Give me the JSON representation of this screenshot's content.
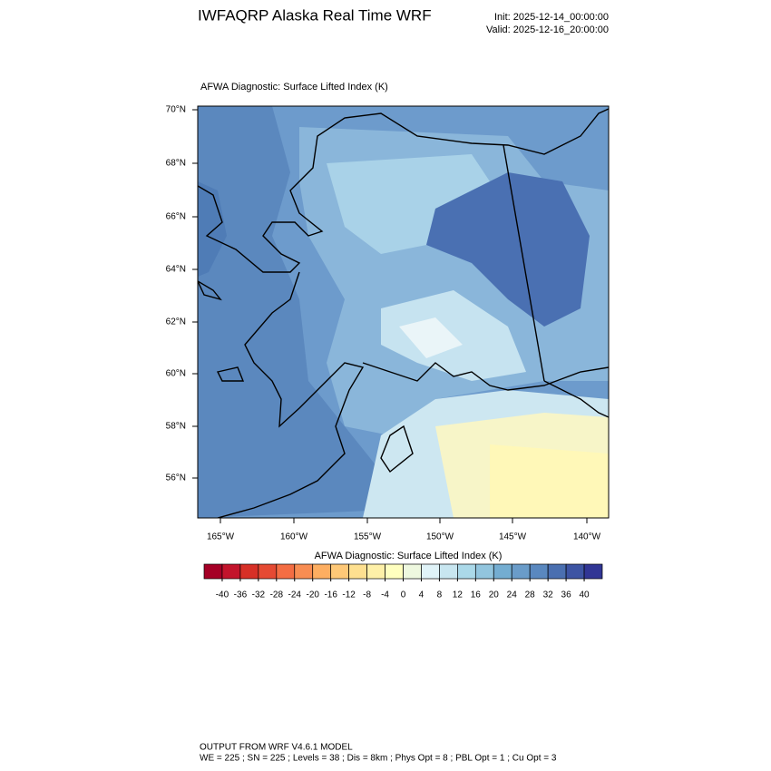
{
  "header": {
    "title": "IWFAQRP Alaska Real Time WRF",
    "init": "Init: 2025-12-14_00:00:00",
    "valid": "Valid: 2025-12-16_20:00:00"
  },
  "map": {
    "title": "AFWA Diagnostic: Surface Lifted Index   (K)",
    "lat_labels": [
      "70°N",
      "68°N",
      "66°N",
      "64°N",
      "62°N",
      "60°N",
      "58°N",
      "56°N"
    ],
    "lon_labels": [
      "165°W",
      "160°W",
      "155°W",
      "150°W",
      "145°W",
      "140°W"
    ]
  },
  "colorbar": {
    "title": "AFWA Diagnostic: Surface Lifted Index  (K)",
    "colors": [
      "#a50026",
      "#c3142c",
      "#d73027",
      "#e54a33",
      "#f46d43",
      "#f88d52",
      "#fdae61",
      "#fec877",
      "#fee090",
      "#fef0a8",
      "#ffffbf",
      "#eef8df",
      "#e0f3f8",
      "#c8e6f0",
      "#abd9e9",
      "#92c5de",
      "#74add1",
      "#6a9cc9",
      "#5a88bf",
      "#4a6fb0",
      "#3d54a3",
      "#313695"
    ],
    "ticks": [
      -40,
      -36,
      -32,
      -28,
      -24,
      -20,
      -16,
      -12,
      -8,
      -4,
      0,
      4,
      8,
      12,
      16,
      20,
      24,
      28,
      32,
      36,
      40
    ]
  },
  "footer": {
    "line1": "OUTPUT FROM WRF V4.6.1 MODEL",
    "line2": "WE = 225 ; SN = 225 ; Levels = 38 ; Dis = 8km ; Phys Opt = 8 ; PBL Opt = 1 ; Cu Opt = 3"
  }
}
